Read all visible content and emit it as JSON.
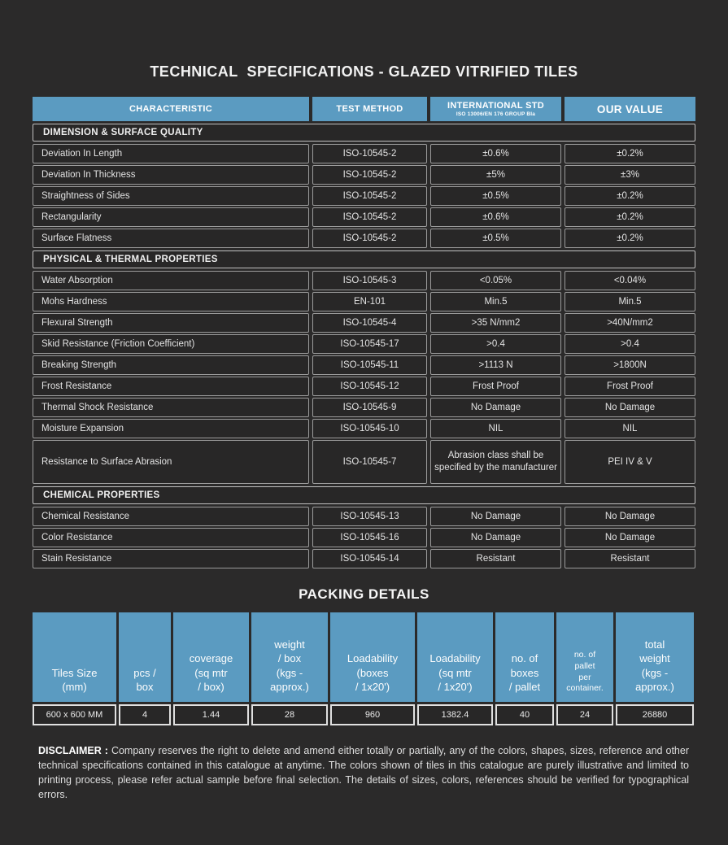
{
  "page": {
    "title": "TECHNICAL  SPECIFICATIONS - GLAZED VITRIFIED TILES",
    "background_color": "#2b2a2a",
    "accent_blue": "#5b9bc1"
  },
  "spec_table": {
    "columns": [
      {
        "label": "CHARACTERISTIC",
        "sub": ""
      },
      {
        "label": "TEST METHOD",
        "sub": ""
      },
      {
        "label": "INTERNATIONAL STD",
        "sub": "ISO 13006/EN 176 GROUP BIa"
      },
      {
        "label": "OUR VALUE",
        "sub": ""
      }
    ],
    "sections": [
      {
        "title": "DIMENSION & SURFACE QUALITY",
        "rows": [
          {
            "characteristic": "Deviation In Length",
            "test_method": "ISO-10545-2",
            "international_std": "±0.6%",
            "our_value": "±0.2%"
          },
          {
            "characteristic": "Deviation In Thickness",
            "test_method": "ISO-10545-2",
            "international_std": "±5%",
            "our_value": "±3%"
          },
          {
            "characteristic": "Straightness of Sides",
            "test_method": "ISO-10545-2",
            "international_std": "±0.5%",
            "our_value": "±0.2%"
          },
          {
            "characteristic": "Rectangularity",
            "test_method": "ISO-10545-2",
            "international_std": "±0.6%",
            "our_value": "±0.2%"
          },
          {
            "characteristic": "Surface Flatness",
            "test_method": "ISO-10545-2",
            "international_std": "±0.5%",
            "our_value": "±0.2%"
          }
        ]
      },
      {
        "title": "PHYSICAL & THERMAL PROPERTIES",
        "rows": [
          {
            "characteristic": "Water Absorption",
            "test_method": "ISO-10545-3",
            "international_std": "<0.05%",
            "our_value": "<0.04%"
          },
          {
            "characteristic": "Mohs Hardness",
            "test_method": "EN-101",
            "international_std": "Min.5",
            "our_value": "Min.5"
          },
          {
            "characteristic": "Flexural Strength",
            "test_method": "ISO-10545-4",
            "international_std": ">35 N/mm2",
            "our_value": ">40N/mm2"
          },
          {
            "characteristic": "Skid Resistance (Friction Coefficient)",
            "test_method": "ISO-10545-17",
            "international_std": ">0.4",
            "our_value": ">0.4"
          },
          {
            "characteristic": "Breaking Strength",
            "test_method": "ISO-10545-11",
            "international_std": ">1113 N",
            "our_value": ">1800N"
          },
          {
            "characteristic": "Frost Resistance",
            "test_method": "ISO-10545-12",
            "international_std": "Frost Proof",
            "our_value": "Frost Proof"
          },
          {
            "characteristic": "Thermal Shock Resistance",
            "test_method": "ISO-10545-9",
            "international_std": "No  Damage",
            "our_value": "No  Damage"
          },
          {
            "characteristic": "Moisture Expansion",
            "test_method": "ISO-10545-10",
            "international_std": "NIL",
            "our_value": "NIL"
          },
          {
            "characteristic": "Resistance to Surface Abrasion",
            "test_method": "ISO-10545-7",
            "international_std": "Abrasion class shall be specified by the manufacturer",
            "our_value": "PEI IV & V",
            "tall": true
          }
        ]
      },
      {
        "title": "CHEMICAL PROPERTIES",
        "rows": [
          {
            "characteristic": "Chemical Resistance",
            "test_method": "ISO-10545-13",
            "international_std": "No Damage",
            "our_value": "No Damage"
          },
          {
            "characteristic": "Color Resistance",
            "test_method": "ISO-10545-16",
            "international_std": "No Damage",
            "our_value": "No Damage"
          },
          {
            "characteristic": "Stain Resistance",
            "test_method": "ISO-10545-14",
            "international_std": "Resistant",
            "our_value": "Resistant"
          }
        ]
      }
    ]
  },
  "packing": {
    "title": "PACKING DETAILS",
    "columns": [
      {
        "label": "Tiles Size\n(mm)"
      },
      {
        "label": "pcs /\nbox"
      },
      {
        "label": "coverage\n(sq mtr\n/ box)"
      },
      {
        "label": "weight\n/ box\n(kgs -\napprox.)"
      },
      {
        "label": "Loadability\n(boxes\n/ 1x20')"
      },
      {
        "label": "Loadability\n(sq mtr\n/ 1x20')"
      },
      {
        "label": "no. of\nboxes\n/ pallet"
      },
      {
        "label": "no. of\npallet\nper\ncontainer.",
        "small": true
      },
      {
        "label": "total\nweight\n(kgs -\napprox.)"
      }
    ],
    "rows": [
      [
        "600 x 600 MM",
        "4",
        "1.44",
        "28",
        "960",
        "1382.4",
        "40",
        "24",
        "26880"
      ]
    ]
  },
  "disclaimer": {
    "label": "DISCLAIMER :",
    "text": " Company reserves the right to delete and amend either totally or partially, any of the colors, shapes, sizes, reference and other technical specifications contained in this catalogue at anytime. The colors shown of tiles in this catalogue are purely illustrative and limited to printing process, please refer actual sample before final selection. The details of sizes, colors, references should be verified for typographical errors."
  }
}
